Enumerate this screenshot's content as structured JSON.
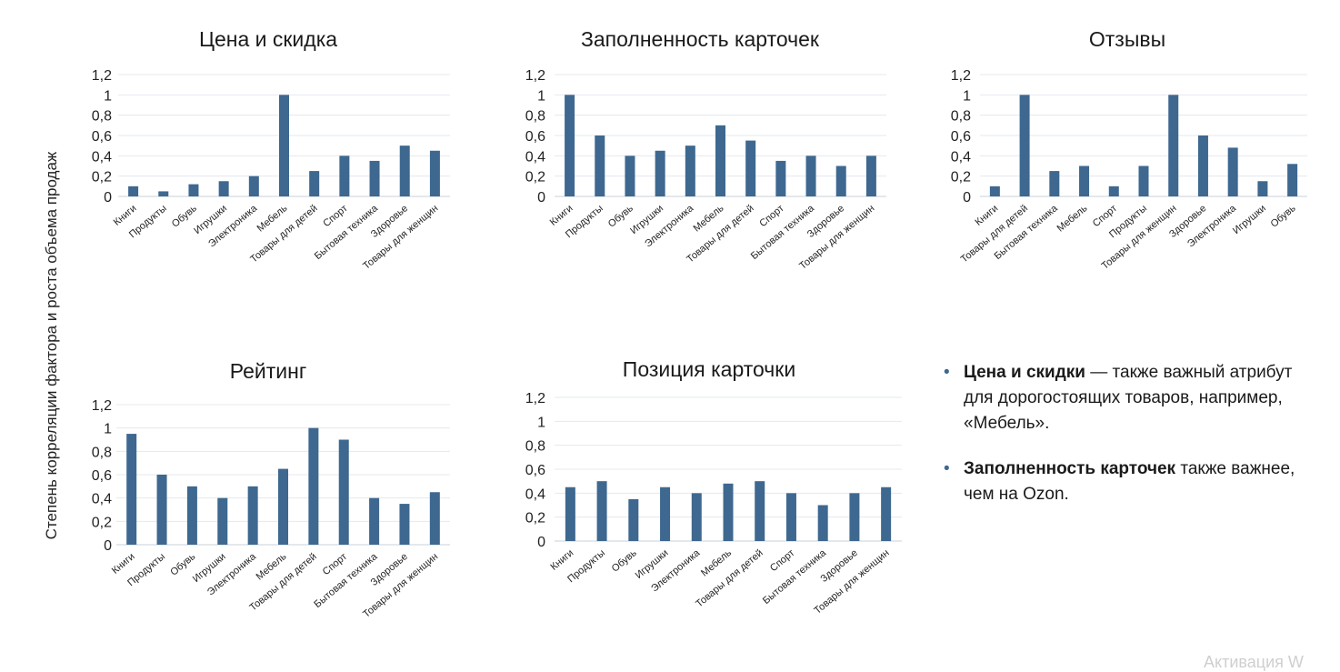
{
  "ylabel": "Степень корреляции фактора и роста объема продаж",
  "notes": [
    {
      "bold": "Цена и скидки",
      "text": " — также важный атрибут для дорогостоящих товаров, например, «Мебель»."
    },
    {
      "bold": "Заполненность карточек",
      "text": " также важнее, чем на Ozon."
    }
  ],
  "watermark": "Активация W",
  "colors": {
    "bar": "#3e6890",
    "grid": "#e4e8ee",
    "axis": "#c9d0da"
  },
  "chart_data": [
    {
      "type": "bar",
      "title": "Цена и скидка",
      "categories": [
        "Книги",
        "Продукты",
        "Обувь",
        "Игрушки",
        "Электроника",
        "Мебель",
        "Товары для детей",
        "Спорт",
        "Бытовая техника",
        "Здоровье",
        "Товары для женщин"
      ],
      "values": [
        0.1,
        0.05,
        0.12,
        0.15,
        0.2,
        1.0,
        0.25,
        0.4,
        0.35,
        0.5,
        0.45
      ],
      "yticks": [
        "0",
        "0,2",
        "0,4",
        "0,6",
        "0,8",
        "1",
        "1,2"
      ],
      "ylim": [
        0,
        1.2
      ],
      "grid": true
    },
    {
      "type": "bar",
      "title": "Заполненность карточек",
      "categories": [
        "Книги",
        "Продукты",
        "Обувь",
        "Игрушки",
        "Электроника",
        "Мебель",
        "Товары для детей",
        "Спорт",
        "Бытовая техника",
        "Здоровье",
        "Товары для женщин"
      ],
      "values": [
        1.0,
        0.6,
        0.4,
        0.45,
        0.5,
        0.7,
        0.55,
        0.35,
        0.4,
        0.3,
        0.4
      ],
      "yticks": [
        "0",
        "0,2",
        "0,4",
        "0,6",
        "0,8",
        "1",
        "1,2"
      ],
      "ylim": [
        0,
        1.2
      ],
      "grid": true
    },
    {
      "type": "bar",
      "title": "Отзывы",
      "categories": [
        "Книги",
        "Товары для детей",
        "Бытовая техника",
        "Мебель",
        "Спорт",
        "Продукты",
        "Товары для женщин",
        "Здоровье",
        "Электроника",
        "Игрушки",
        "Обувь"
      ],
      "values": [
        0.1,
        1.0,
        0.25,
        0.3,
        0.1,
        0.3,
        1.0,
        0.6,
        0.48,
        0.15,
        0.32
      ],
      "yticks": [
        "0",
        "0,2",
        "0,4",
        "0,6",
        "0,8",
        "1",
        "1,2"
      ],
      "ylim": [
        0,
        1.2
      ],
      "grid": true
    },
    {
      "type": "bar",
      "title": "Рейтинг",
      "categories": [
        "Книги",
        "Продукты",
        "Обувь",
        "Игрушки",
        "Электроника",
        "Мебель",
        "Товары для детей",
        "Спорт",
        "Бытовая техника",
        "Здоровье",
        "Товары для женщин"
      ],
      "values": [
        0.95,
        0.6,
        0.5,
        0.4,
        0.5,
        0.65,
        1.0,
        0.9,
        0.4,
        0.35,
        0.45
      ],
      "yticks": [
        "0",
        "0,2",
        "0,4",
        "0,6",
        "0,8",
        "1",
        "1,2"
      ],
      "ylim": [
        0,
        1.2
      ],
      "grid": true
    },
    {
      "type": "bar",
      "title": "Позиция карточки",
      "categories": [
        "Книги",
        "Продукты",
        "Обувь",
        "Игрушки",
        "Электроника",
        "Мебель",
        "Товары для детей",
        "Спорт",
        "Бытовая техника",
        "Здоровье",
        "Товары для женщин"
      ],
      "values": [
        0.45,
        0.5,
        0.35,
        0.45,
        0.4,
        0.48,
        0.5,
        0.4,
        0.3,
        0.4,
        0.45
      ],
      "yticks": [
        "0",
        "0,2",
        "0,4",
        "0,6",
        "0,8",
        "1",
        "1,2"
      ],
      "ylim": [
        0,
        1.2
      ],
      "grid": true
    }
  ]
}
